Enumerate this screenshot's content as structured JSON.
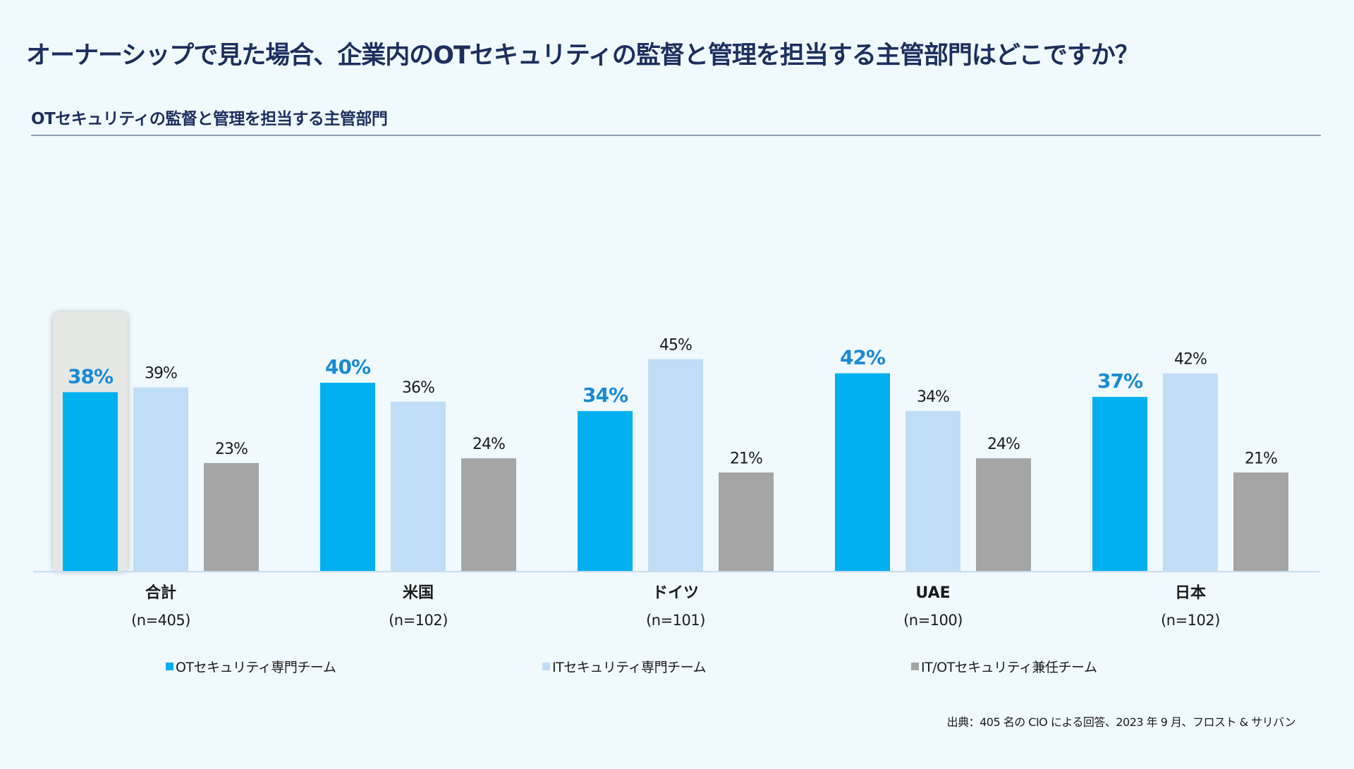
{
  "title": "オーナーシップで見た場合、企業内のOTセキュリティの監督と管理を担当する主管部門はどこですか？",
  "chart_data": {
    "type": "bar",
    "title": "OTセキュリティの監督と管理を担当する主管部門",
    "categories": [
      "合計",
      "米国",
      "ドイツ",
      "UAE",
      "日本"
    ],
    "category_sublabels": [
      "(n=405)",
      "(n=102)",
      "(n=101)",
      "(n=100)",
      "(n=102)"
    ],
    "series": [
      {
        "name": "OTセキュリティ専門チーム",
        "color": "#00b0f0",
        "label_color": "#1a8ad4",
        "values": [
          38,
          40,
          34,
          42,
          37
        ]
      },
      {
        "name": "ITセキュリティ専門チーム",
        "color": "#c0ddf7",
        "label_color": "#1b1b1b",
        "values": [
          39,
          36,
          45,
          34,
          42
        ]
      },
      {
        "name": "IT/OTセキュリティ兼任チーム",
        "color": "#a5a5a5",
        "label_color": "#1b1b1b",
        "values": [
          23,
          24,
          21,
          24,
          21
        ]
      }
    ],
    "value_suffix": "%",
    "highlighted_category": "合計",
    "ylim": [
      0,
      60
    ],
    "grid": false,
    "legend_position": "bottom"
  },
  "footer": "出典：405 名の CIO による回答、2023 年 9 月、フロスト & サリバン"
}
